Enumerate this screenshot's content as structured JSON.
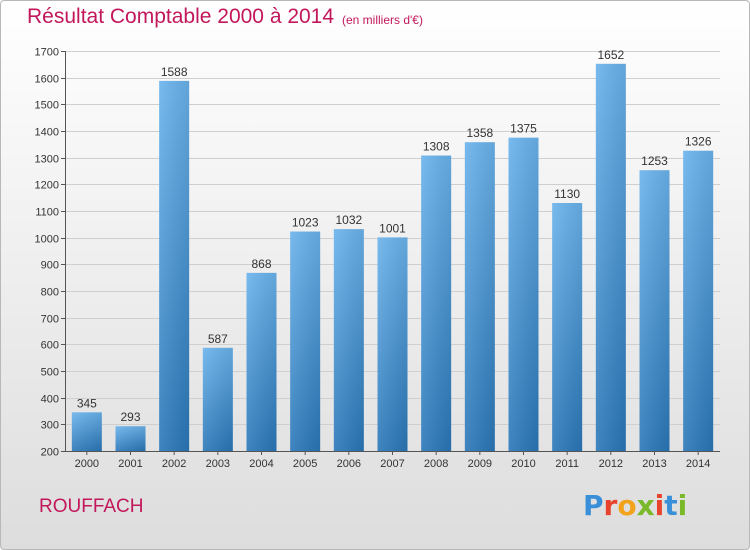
{
  "header": {
    "title": "Résultat Comptable 2000 à 2014",
    "unit": "(en milliers d'€)"
  },
  "footer": {
    "commune": "ROUFFACH",
    "brand": "Proxiti"
  },
  "brand_colors": [
    "#3a8fd9",
    "#e8432c",
    "#f2a21b",
    "#7ab929",
    "#e8432c",
    "#3a8fd9",
    "#7ab929"
  ],
  "chart_data": {
    "type": "bar",
    "title": "Résultat Comptable 2000 à 2014",
    "unit": "(en milliers d'€)",
    "xlabel": "",
    "ylabel": "",
    "categories": [
      "2000",
      "2001",
      "2002",
      "2003",
      "2004",
      "2005",
      "2006",
      "2007",
      "2008",
      "2009",
      "2010",
      "2011",
      "2012",
      "2013",
      "2014"
    ],
    "values": [
      345,
      293,
      1588,
      587,
      868,
      1023,
      1032,
      1001,
      1308,
      1358,
      1375,
      1130,
      1652,
      1253,
      1326
    ],
    "ylim": [
      200,
      1700
    ],
    "yticks": [
      200,
      300,
      400,
      500,
      600,
      700,
      800,
      900,
      1000,
      1100,
      1200,
      1300,
      1400,
      1500,
      1600,
      1700
    ],
    "grid": true,
    "data_labels": true,
    "bar_color": "#3d8fd4"
  }
}
